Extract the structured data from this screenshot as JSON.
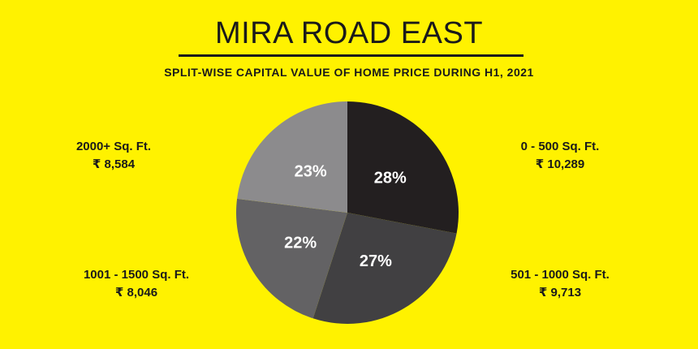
{
  "chart_data": {
    "type": "pie",
    "title": "MIRA ROAD EAST",
    "subtitle": "SPLIT-WISE CAPITAL VALUE OF HOME PRICE DURING H1, 2021",
    "slices": [
      {
        "category": "0 - 500 Sq. Ft.",
        "price": "₹ 10,289",
        "percent": 28,
        "label": "28%",
        "color": "#231F20"
      },
      {
        "category": "501 - 1000 Sq. Ft.",
        "price": "₹ 9,713",
        "percent": 27,
        "label": "27%",
        "color": "#414042"
      },
      {
        "category": "1001 - 1500 Sq. Ft.",
        "price": "₹ 8,046",
        "percent": 22,
        "label": "22%",
        "color": "#636264"
      },
      {
        "category": "2000+ Sq. Ft.",
        "price": "₹ 8,584",
        "percent": 23,
        "label": "23%",
        "color": "#8C8B8D"
      }
    ]
  },
  "colors": {
    "background": "#FFF200",
    "text": "#1A1A1A"
  }
}
